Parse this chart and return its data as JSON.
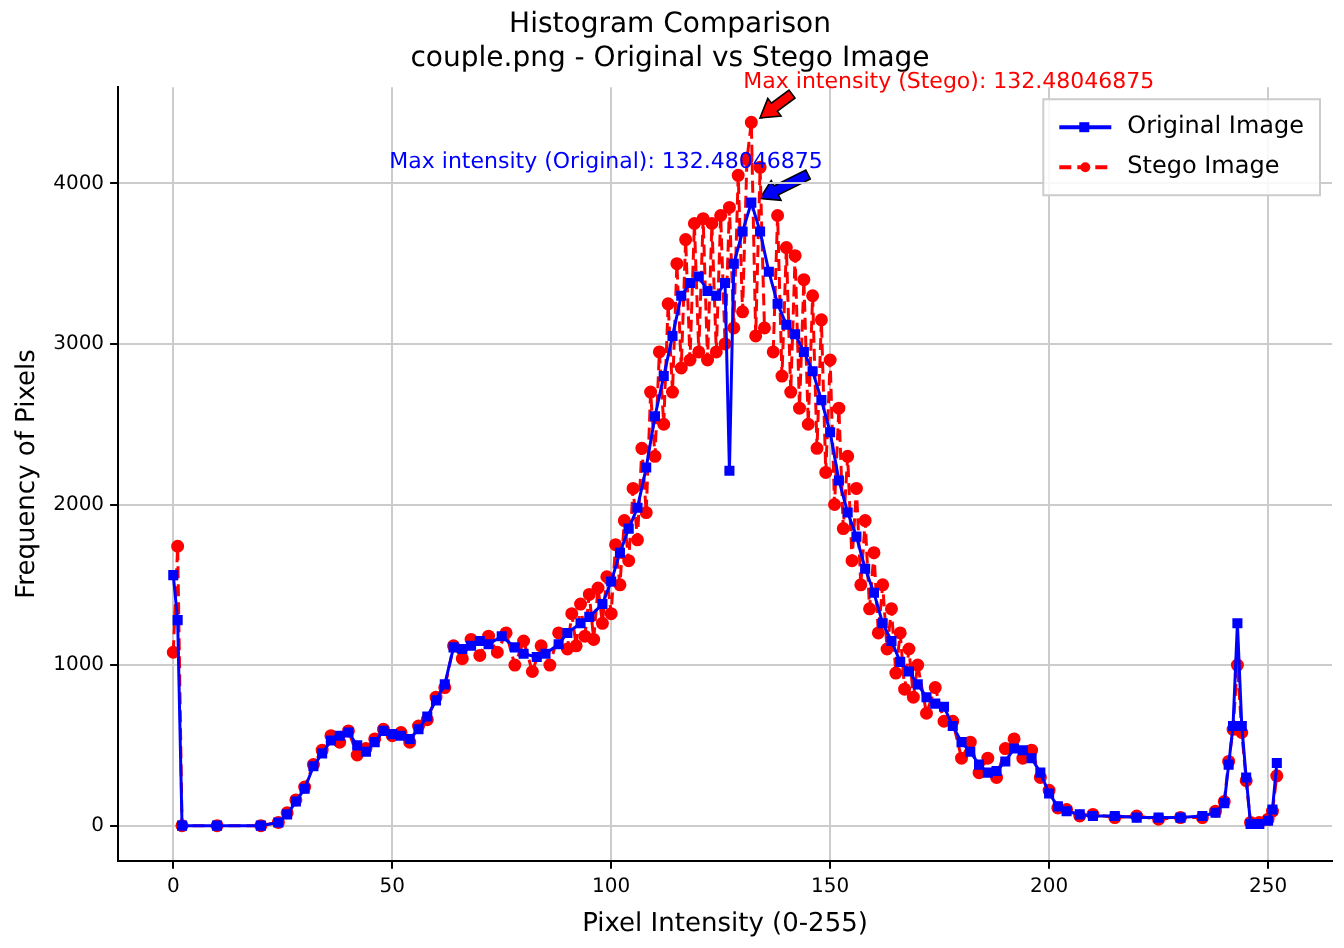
{
  "chart_data": {
    "type": "line",
    "title": "Histogram Comparison",
    "subtitle": "couple.png - Original vs Stego Image",
    "xlabel": "Pixel Intensity (0-255)",
    "ylabel": "Frequency of Pixels",
    "xlim": [
      -12.6,
      264.6
    ],
    "xticks": [
      0,
      50,
      100,
      150,
      200,
      250
    ],
    "ylim": [
      -219,
      4599
    ],
    "yticks": [
      0,
      1000,
      2000,
      3000,
      4000
    ],
    "grid": true,
    "legend": "top right",
    "annotations": [
      {
        "text": "Max intensity (Original): 132.48046875",
        "x": 132,
        "y": 3880
      },
      {
        "text": "Max intensity (Stego): 132.48046875",
        "x": 132,
        "y": 4380
      }
    ],
    "series": [
      {
        "name": "Original Image",
        "color": "#0000ff",
        "marker": "square",
        "line_style": "solid",
        "x": [
          0,
          1,
          2,
          10,
          20,
          24,
          26,
          28,
          30,
          32,
          34,
          36,
          38,
          40,
          42,
          44,
          46,
          48,
          50,
          52,
          54,
          56,
          58,
          60,
          62,
          64,
          66,
          68,
          70,
          72,
          75,
          78,
          80,
          83,
          85,
          88,
          90,
          93,
          95,
          98,
          100,
          102,
          104,
          106,
          108,
          110,
          112,
          114,
          116,
          118,
          120,
          122,
          124,
          126,
          127,
          128,
          130,
          132,
          134,
          136,
          138,
          140,
          142,
          144,
          146,
          148,
          150,
          152,
          154,
          156,
          158,
          160,
          162,
          164,
          166,
          168,
          170,
          172,
          174,
          176,
          178,
          180,
          182,
          184,
          186,
          188,
          190,
          192,
          194,
          196,
          198,
          200,
          202,
          204,
          207,
          210,
          215,
          220,
          225,
          230,
          235,
          238,
          240,
          241,
          242,
          243,
          244,
          245,
          246,
          248,
          250,
          251,
          252
        ],
        "values": [
          1560,
          1280,
          0,
          0,
          0,
          20,
          70,
          150,
          230,
          370,
          450,
          530,
          560,
          580,
          500,
          460,
          520,
          590,
          570,
          560,
          540,
          600,
          680,
          780,
          880,
          1110,
          1100,
          1120,
          1150,
          1130,
          1180,
          1110,
          1070,
          1050,
          1070,
          1130,
          1200,
          1260,
          1300,
          1380,
          1520,
          1700,
          1850,
          1980,
          2230,
          2550,
          2800,
          3050,
          3300,
          3380,
          3420,
          3330,
          3300,
          3380,
          2210,
          3500,
          3700,
          3880,
          3700,
          3450,
          3250,
          3120,
          3060,
          2950,
          2830,
          2650,
          2450,
          2150,
          1950,
          1800,
          1600,
          1450,
          1260,
          1150,
          1020,
          960,
          880,
          800,
          760,
          740,
          620,
          520,
          460,
          380,
          330,
          340,
          400,
          480,
          470,
          420,
          330,
          200,
          120,
          90,
          70,
          60,
          60,
          50,
          50,
          50,
          60,
          80,
          140,
          380,
          620,
          1260,
          620,
          300,
          10,
          10,
          30,
          100,
          390
        ]
      },
      {
        "name": "Stego Image",
        "color": "#ff0000",
        "marker": "circle",
        "line_style": "dashed",
        "x": [
          0,
          1,
          2,
          10,
          20,
          24,
          26,
          28,
          30,
          32,
          34,
          36,
          38,
          40,
          42,
          44,
          46,
          48,
          50,
          52,
          54,
          56,
          58,
          60,
          62,
          64,
          66,
          68,
          70,
          72,
          74,
          76,
          78,
          80,
          82,
          84,
          86,
          88,
          90,
          91,
          92,
          93,
          94,
          95,
          96,
          97,
          98,
          99,
          100,
          101,
          102,
          103,
          104,
          105,
          106,
          107,
          108,
          109,
          110,
          111,
          112,
          113,
          114,
          115,
          116,
          117,
          118,
          119,
          120,
          121,
          122,
          123,
          124,
          125,
          126,
          127,
          128,
          129,
          130,
          131,
          132,
          133,
          134,
          135,
          136,
          137,
          138,
          139,
          140,
          141,
          142,
          143,
          144,
          145,
          146,
          147,
          148,
          149,
          150,
          151,
          152,
          153,
          154,
          155,
          156,
          157,
          158,
          159,
          160,
          161,
          162,
          163,
          164,
          165,
          166,
          167,
          168,
          169,
          170,
          172,
          174,
          176,
          178,
          180,
          182,
          184,
          186,
          188,
          190,
          192,
          194,
          196,
          198,
          200,
          202,
          204,
          207,
          210,
          215,
          220,
          225,
          230,
          235,
          238,
          240,
          241,
          242,
          243,
          244,
          245,
          246,
          248,
          250,
          251,
          252
        ],
        "values": [
          1080,
          1740,
          0,
          0,
          0,
          20,
          80,
          160,
          240,
          380,
          470,
          560,
          520,
          590,
          440,
          480,
          540,
          600,
          560,
          580,
          520,
          620,
          660,
          800,
          860,
          1120,
          1040,
          1160,
          1060,
          1180,
          1080,
          1200,
          1000,
          1150,
          960,
          1120,
          1000,
          1200,
          1100,
          1320,
          1120,
          1380,
          1180,
          1440,
          1160,
          1480,
          1260,
          1550,
          1320,
          1750,
          1500,
          1900,
          1650,
          2100,
          1780,
          2350,
          1950,
          2700,
          2300,
          2950,
          2500,
          3250,
          2700,
          3500,
          2850,
          3650,
          2900,
          3750,
          2950,
          3780,
          2900,
          3750,
          2950,
          3800,
          3000,
          3850,
          3100,
          4050,
          3200,
          4150,
          4380,
          3050,
          4100,
          3100,
          null,
          2950,
          3800,
          2800,
          3600,
          2700,
          3550,
          2600,
          3400,
          2500,
          3300,
          2350,
          3150,
          2200,
          2900,
          2000,
          2600,
          1850,
          2300,
          1650,
          2100,
          1500,
          1900,
          1350,
          1700,
          1200,
          1500,
          1100,
          1350,
          950,
          1200,
          850,
          1100,
          800,
          1000,
          700,
          860,
          650,
          650,
          420,
          520,
          330,
          420,
          300,
          480,
          540,
          420,
          470,
          300,
          220,
          110,
          100,
          60,
          70,
          50,
          60,
          40,
          50,
          50,
          90,
          150,
          400,
          600,
          1000,
          580,
          280,
          20,
          20,
          40,
          90,
          310
        ]
      }
    ]
  }
}
